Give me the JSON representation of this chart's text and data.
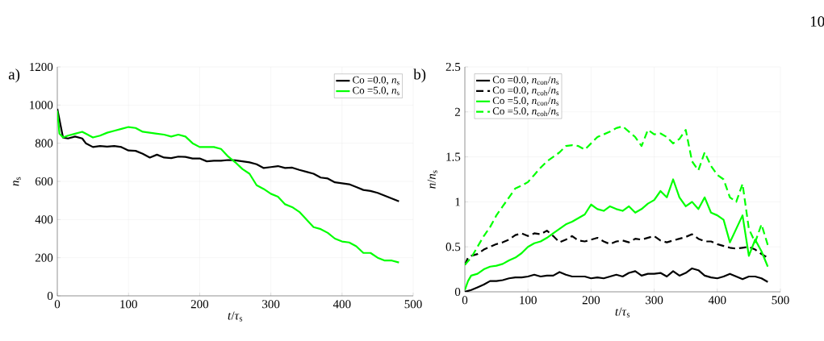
{
  "chart_data": [
    {
      "type": "line",
      "xlabel": "*t*/*τ*$_{s}$",
      "ylabel": "*n*$_{s}$",
      "annotations": [
        "a)"
      ],
      "x": [
        0,
        3,
        8,
        15,
        25,
        35,
        40,
        50,
        60,
        70,
        80,
        90,
        100,
        110,
        120,
        130,
        140,
        150,
        160,
        170,
        180,
        190,
        200,
        210,
        220,
        230,
        240,
        250,
        260,
        270,
        280,
        290,
        300,
        310,
        320,
        330,
        340,
        350,
        360,
        370,
        380,
        390,
        400,
        410,
        420,
        430,
        440,
        450,
        460,
        470,
        480
      ],
      "xlim": [
        0,
        500
      ],
      "xticks": [
        0,
        100,
        200,
        300,
        400,
        500
      ],
      "ylim": [
        0,
        1200
      ],
      "yticks": [
        0,
        200,
        400,
        600,
        800,
        1000,
        1200
      ],
      "grid": true,
      "legend": "top right",
      "series": [
        {
          "name": "Co =0.0, *n*$_{s}$",
          "color": "#000000",
          "line_style": "solid",
          "values": [
            980,
            null,
            830,
            825,
            835,
            825,
            800,
            780,
            785,
            782,
            785,
            780,
            762,
            760,
            745,
            725,
            740,
            725,
            722,
            730,
            728,
            720,
            720,
            705,
            708,
            708,
            712,
            710,
            705,
            700,
            690,
            670,
            675,
            680,
            670,
            672,
            660,
            650,
            640,
            620,
            615,
            595,
            590,
            585,
            570,
            555,
            550,
            540,
            525,
            510,
            495
          ]
        },
        {
          "name": "Co =5.0, *n*$_{s}$",
          "color": "#00ff00",
          "line_style": "solid",
          "values": [
            970,
            850,
            830,
            840,
            850,
            860,
            850,
            830,
            840,
            855,
            865,
            875,
            885,
            880,
            860,
            855,
            850,
            845,
            835,
            845,
            835,
            800,
            780,
            780,
            780,
            770,
            730,
            700,
            665,
            640,
            580,
            560,
            535,
            520,
            480,
            465,
            440,
            400,
            360,
            350,
            330,
            300,
            285,
            280,
            260,
            225,
            225,
            200,
            185,
            185,
            175
          ]
        }
      ]
    },
    {
      "type": "line",
      "xlabel": "*t*/*τ*$_{s}$",
      "ylabel": "*n*/*n*$_{s}$",
      "annotations": [
        "b)",
        "10"
      ],
      "x": [
        0,
        5,
        10,
        20,
        30,
        40,
        50,
        60,
        70,
        80,
        90,
        100,
        110,
        120,
        130,
        140,
        150,
        160,
        170,
        180,
        190,
        200,
        210,
        220,
        230,
        240,
        250,
        260,
        270,
        280,
        290,
        300,
        310,
        320,
        330,
        340,
        350,
        360,
        370,
        380,
        390,
        400,
        410,
        420,
        430,
        440,
        450,
        460,
        470,
        480
      ],
      "xlim": [
        0,
        500
      ],
      "xticks": [
        0,
        100,
        200,
        300,
        400,
        500
      ],
      "ylim": [
        0,
        2.5
      ],
      "yticks": [
        0,
        0.5,
        1,
        1.5,
        2,
        2.5
      ],
      "grid": true,
      "legend": "top left",
      "series": [
        {
          "name": "Co =0.0, *n*$_{con}$/*n*$_{s}$",
          "color": "#000000",
          "line_style": "solid",
          "values": [
            0,
            0.01,
            0.02,
            0.05,
            0.08,
            0.12,
            0.12,
            0.13,
            0.15,
            0.16,
            0.16,
            0.17,
            0.19,
            0.17,
            0.18,
            0.18,
            0.22,
            0.19,
            0.17,
            0.17,
            0.17,
            0.15,
            0.16,
            0.15,
            0.17,
            0.19,
            0.17,
            0.21,
            0.23,
            0.18,
            0.2,
            0.2,
            0.21,
            0.17,
            0.23,
            0.18,
            0.21,
            0.26,
            0.24,
            0.18,
            0.16,
            0.15,
            0.17,
            0.2,
            0.17,
            0.14,
            0.17,
            0.17,
            0.15,
            0.11
          ]
        },
        {
          "name": "Co =0.0, *n*$_{coh}$/*n*$_{s}$",
          "color": "#000000",
          "line_style": "dashed",
          "values": [
            0.3,
            0.38,
            0.4,
            0.42,
            0.47,
            0.5,
            0.53,
            0.55,
            0.58,
            0.63,
            0.65,
            0.62,
            0.65,
            0.64,
            0.68,
            0.62,
            0.55,
            0.58,
            0.62,
            0.57,
            0.56,
            0.58,
            0.6,
            0.56,
            0.53,
            0.56,
            0.57,
            0.55,
            0.59,
            0.58,
            0.6,
            0.62,
            0.57,
            0.55,
            0.57,
            0.59,
            0.61,
            0.64,
            0.59,
            0.56,
            0.56,
            0.53,
            0.51,
            0.49,
            0.48,
            0.49,
            0.5,
            0.47,
            0.42,
            0.38
          ]
        },
        {
          "name": "Co =5.0, *n*$_{con}$/*n*$_{s}$",
          "color": "#00ff00",
          "line_style": "solid",
          "values": [
            0.02,
            0.12,
            0.18,
            0.2,
            0.25,
            0.28,
            0.29,
            0.31,
            0.35,
            0.38,
            0.43,
            0.5,
            0.54,
            0.56,
            0.6,
            0.65,
            0.7,
            0.75,
            0.78,
            0.82,
            0.86,
            0.97,
            0.92,
            0.9,
            0.95,
            0.92,
            0.9,
            0.95,
            0.88,
            0.92,
            0.98,
            1.02,
            1.12,
            1.05,
            1.25,
            1.05,
            0.95,
            1.0,
            0.92,
            1.05,
            0.88,
            0.85,
            0.8,
            0.55,
            0.7,
            0.85,
            0.4,
            0.58,
            0.45,
            0.28
          ]
        },
        {
          "name": "Co =5.0, *n*$_{coh}$/*n*$_{s}$",
          "color": "#00ff00",
          "line_style": "dashed",
          "values": [
            0.3,
            0.34,
            0.38,
            0.5,
            0.62,
            0.72,
            0.85,
            0.95,
            1.05,
            1.15,
            1.18,
            1.22,
            1.3,
            1.38,
            1.45,
            1.5,
            1.55,
            1.62,
            1.63,
            1.62,
            1.58,
            1.65,
            1.72,
            1.75,
            1.78,
            1.82,
            1.84,
            1.78,
            1.72,
            1.62,
            1.8,
            1.75,
            1.76,
            1.72,
            1.65,
            1.7,
            1.8,
            1.45,
            1.35,
            1.55,
            1.4,
            1.3,
            1.25,
            1.05,
            1.0,
            1.2,
            0.7,
            0.55,
            0.75,
            0.52
          ]
        }
      ]
    }
  ]
}
